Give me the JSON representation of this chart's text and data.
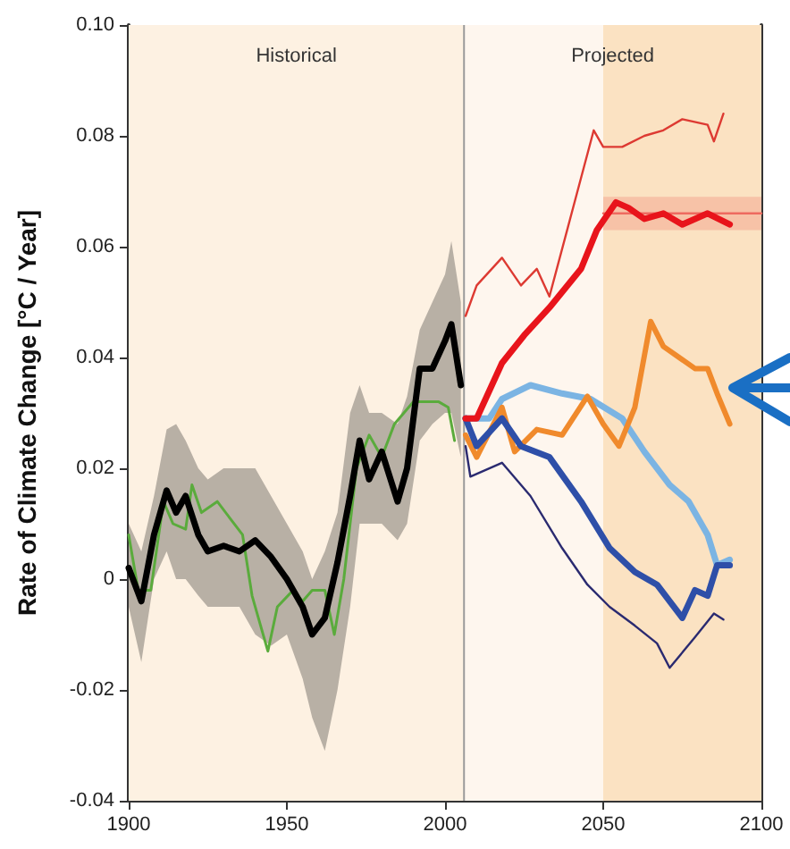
{
  "chart_data": {
    "type": "line",
    "ylabel": "Rate of Climate Change [°C / Year]",
    "xlim": [
      1900,
      2100
    ],
    "xticks": [
      1900,
      1950,
      2000,
      2050,
      2100
    ],
    "ylim": [
      -0.04,
      0.1
    ],
    "yticks": [
      -0.04,
      -0.02,
      0,
      0.02,
      0.04,
      0.06,
      0.08,
      {
        "value": 0.1,
        "label": "0.10"
      }
    ],
    "marker": "none",
    "line_style": "solid",
    "bands": [
      {
        "axis": "x",
        "from": 1900,
        "to": 2006,
        "label": "Historical",
        "color": "#fdf1e2"
      },
      {
        "axis": "x",
        "from": 2006,
        "to": 2100,
        "label": "Projected",
        "color": "#fef6ee"
      },
      {
        "axis": "x",
        "from": 2050,
        "to": 2100,
        "label": null,
        "color": "#fbe2c2"
      }
    ],
    "ref_lines": [
      {
        "axis": "x",
        "value": 2006,
        "label": null,
        "color": "#9a9a9a"
      }
    ],
    "series": [
      {
        "color": "#5aab3c",
        "x": [
          1900,
          1903,
          1907,
          1911,
          1914,
          1918,
          1920,
          1923,
          1928,
          1932,
          1936,
          1939,
          1944,
          1947,
          1952,
          1955,
          1958,
          1962,
          1965,
          1968,
          1972,
          1976,
          1980,
          1984,
          1990,
          1994,
          1998,
          2001,
          2003
        ],
        "values": [
          0.008,
          -0.002,
          -0.002,
          0.014,
          0.01,
          0.009,
          0.017,
          0.012,
          0.014,
          0.011,
          0.008,
          -0.003,
          -0.013,
          -0.005,
          -0.002,
          -0.004,
          -0.002,
          -0.002,
          -0.01,
          0.0,
          0.02,
          0.026,
          0.022,
          0.028,
          0.032,
          0.032,
          0.032,
          0.031,
          0.025
        ]
      },
      {
        "color": "#000000",
        "x": [
          1900,
          1904,
          1908,
          1912,
          1915,
          1918,
          1922,
          1925,
          1930,
          1935,
          1940,
          1945,
          1950,
          1955,
          1958,
          1962,
          1966,
          1970,
          1973,
          1976,
          1980,
          1985,
          1988,
          1992,
          1996,
          2000,
          2002,
          2005
        ],
        "values": [
          0.002,
          -0.004,
          0.008,
          0.016,
          0.012,
          0.015,
          0.008,
          0.005,
          0.006,
          0.005,
          0.007,
          0.004,
          0.0,
          -0.005,
          -0.01,
          -0.007,
          0.003,
          0.015,
          0.025,
          0.018,
          0.023,
          0.014,
          0.02,
          0.038,
          0.038,
          0.043,
          0.046,
          0.035
        ],
        "lower": [
          -0.005,
          -0.015,
          0.0,
          0.005,
          0.0,
          0.0,
          -0.003,
          -0.005,
          -0.005,
          -0.005,
          -0.01,
          -0.012,
          -0.01,
          -0.018,
          -0.025,
          -0.031,
          -0.02,
          -0.005,
          0.01,
          0.01,
          0.01,
          0.007,
          0.01,
          0.025,
          0.028,
          0.03,
          0.03,
          0.022
        ],
        "upper": [
          0.01,
          0.005,
          0.015,
          0.027,
          0.028,
          0.025,
          0.02,
          0.018,
          0.02,
          0.02,
          0.02,
          0.015,
          0.01,
          0.005,
          0.0,
          0.005,
          0.012,
          0.03,
          0.035,
          0.03,
          0.03,
          0.028,
          0.033,
          0.045,
          0.05,
          0.055,
          0.061,
          0.05
        ]
      },
      {
        "color": "#dd3a32",
        "x": [
          2006.5,
          2010,
          2018,
          2024,
          2029,
          2033,
          2040,
          2047,
          2050,
          2056,
          2063,
          2069,
          2075,
          2083,
          2085,
          2088
        ],
        "values": [
          0.0475,
          0.053,
          0.058,
          0.053,
          0.056,
          0.051,
          0.066,
          0.081,
          0.078,
          0.078,
          0.08,
          0.081,
          0.083,
          0.082,
          0.079,
          0.084
        ]
      },
      {
        "color": "#ee6a60",
        "x": [
          2050,
          2100
        ],
        "values": [
          0.066,
          0.066
        ],
        "lower": [
          0.063,
          0.063
        ],
        "upper": [
          0.069,
          0.069
        ]
      },
      {
        "color": "#e8141b",
        "x": [
          2006.5,
          2010,
          2018,
          2025,
          2033,
          2043,
          2048,
          2054,
          2058,
          2063,
          2069,
          2075,
          2083,
          2090
        ],
        "values": [
          0.029,
          0.029,
          0.039,
          0.044,
          0.049,
          0.056,
          0.063,
          0.068,
          0.067,
          0.065,
          0.066,
          0.064,
          0.066,
          0.064
        ]
      },
      {
        "color": "#7bb4e3",
        "x": [
          2006.5,
          2014,
          2018,
          2027,
          2037,
          2046,
          2056,
          2063,
          2071,
          2077,
          2083,
          2086,
          2090
        ],
        "values": [
          0.029,
          0.029,
          0.0325,
          0.035,
          0.0335,
          0.0325,
          0.029,
          0.023,
          0.017,
          0.014,
          0.008,
          0.0025,
          0.0035
        ]
      },
      {
        "color": "#f08a2c",
        "x": [
          2006.5,
          2010,
          2018,
          2022,
          2029,
          2037,
          2045,
          2050,
          2055,
          2060,
          2065,
          2069,
          2074,
          2079,
          2083,
          2086,
          2090
        ],
        "values": [
          0.026,
          0.022,
          0.031,
          0.023,
          0.027,
          0.026,
          0.033,
          0.028,
          0.024,
          0.031,
          0.0465,
          0.042,
          0.04,
          0.038,
          0.038,
          0.0335,
          0.028
        ]
      },
      {
        "color": "#2e4fa8",
        "x": [
          2006.5,
          2010,
          2018,
          2024,
          2033,
          2043,
          2052,
          2060,
          2067,
          2075,
          2079,
          2083,
          2086,
          2090
        ],
        "values": [
          0.029,
          0.024,
          0.029,
          0.024,
          0.022,
          0.014,
          0.0056,
          0.0013,
          -0.001,
          -0.007,
          -0.002,
          -0.003,
          0.0025,
          0.0025
        ]
      },
      {
        "color": "#2a2a70",
        "x": [
          2006.5,
          2008,
          2018,
          2027,
          2037,
          2045,
          2052,
          2060,
          2067,
          2071,
          2079,
          2085,
          2088
        ],
        "values": [
          0.024,
          0.0185,
          0.021,
          0.015,
          0.0056,
          -0.001,
          -0.005,
          -0.0084,
          -0.0116,
          -0.016,
          -0.0105,
          -0.0062,
          -0.0073
        ]
      }
    ]
  }
}
